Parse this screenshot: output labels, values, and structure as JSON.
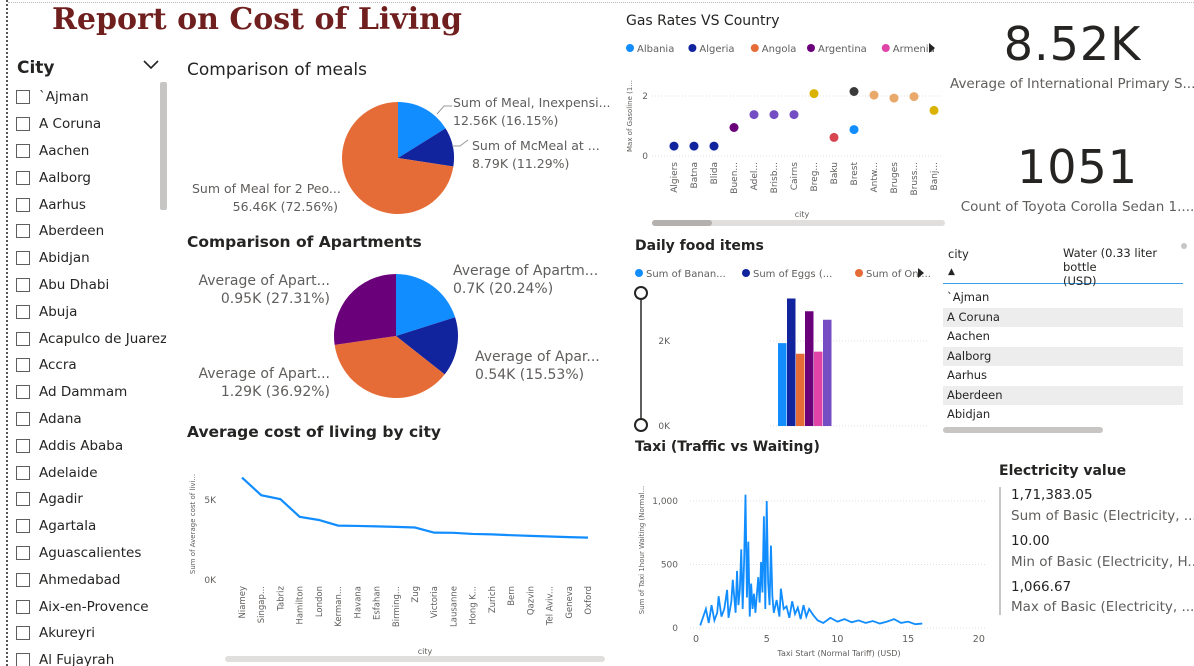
{
  "report_title": "Report on Cost of Living",
  "slicer": {
    "title": "City",
    "items": [
      "`Ajman",
      "A Coruna",
      "Aachen",
      "Aalborg",
      "Aarhus",
      "Aberdeen",
      "Abidjan",
      "Abu Dhabi",
      "Abuja",
      "Acapulco de Juarez",
      "Accra",
      "Ad Dammam",
      "Adana",
      "Addis Ababa",
      "Adelaide",
      "Agadir",
      "Agartala",
      "Aguascalientes",
      "Ahmedabad",
      "Aix-en-Provence",
      "Akureyri",
      "Al Fujayrah"
    ]
  },
  "cards": [
    {
      "value": "8.52K",
      "label": "Average of International Primary S..."
    },
    {
      "value": "1051",
      "label": "Count of Toyota Corolla Sedan 1...."
    }
  ],
  "table": {
    "col1": "city",
    "col2_line1": "Water (0.33 liter bottle",
    "col2_line2": "(USD)",
    "sort_mark": "▲",
    "rows": [
      "`Ajman",
      "A Coruna",
      "Aachen",
      "Aalborg",
      "Aarhus",
      "Aberdeen",
      "Abidjan"
    ]
  },
  "electricity": {
    "title": "Electricity value",
    "items": [
      {
        "value": "1,71,383.05",
        "label": "Sum of Basic (Electricity, ..."
      },
      {
        "value": "10.00",
        "label": "Min of Basic (Electricity, H..."
      },
      {
        "value": "1,066.67",
        "label": "Max of Basic (Electricity, ..."
      }
    ]
  },
  "chart_data": [
    {
      "id": "meals",
      "type": "pie",
      "title": "Comparison of meals",
      "slices": [
        {
          "name": "Sum of Meal, Inexpensi...",
          "label": "12.56K (16.15%)",
          "value": 12560,
          "color": "#118dff"
        },
        {
          "name": "Sum of McMeal at ...",
          "label": "8.79K (11.29%)",
          "value": 8790,
          "color": "#12239e"
        },
        {
          "name": "Sum of Meal for 2 Peo...",
          "label": "56.46K (72.56%)",
          "value": 56460,
          "color": "#e66c37"
        }
      ]
    },
    {
      "id": "apartments",
      "type": "pie",
      "title": "Comparison of Apartments",
      "slices": [
        {
          "name": "Average of Apartm...",
          "label": "0.7K (20.24%)",
          "value": 700,
          "color": "#118dff"
        },
        {
          "name": "Average of Apar...",
          "label": "0.54K (15.53%)",
          "value": 540,
          "color": "#12239e"
        },
        {
          "name": "Average of Apart...",
          "label": "1.29K (36.92%)",
          "value": 1290,
          "color": "#e66c37"
        },
        {
          "name": "Average of Apart...",
          "label": "0.95K (27.31%)",
          "value": 950,
          "color": "#6b007b"
        }
      ]
    },
    {
      "id": "avg_cost",
      "type": "line",
      "title": "Average cost of living by city",
      "xlabel": "city",
      "ylabel": "Sum of Average cost of livi...",
      "ylim": [
        0,
        7000
      ],
      "yticks": [
        {
          "v": 0,
          "t": "0K"
        },
        {
          "v": 5000,
          "t": "5K"
        }
      ],
      "color": "#118dff",
      "categories": [
        "Niamey",
        "Singap...",
        "Tabriz",
        "Hamilton",
        "London",
        "Kerman...",
        "Havana",
        "Esfahan",
        "Birming...",
        "Zug",
        "Victoria",
        "Lausanne",
        "Hong K...",
        "Zurich",
        "Bern",
        "Qazvin",
        "Tel Aviv...",
        "Geneva",
        "Oxford"
      ],
      "values": [
        6400,
        5300,
        5050,
        3950,
        3750,
        3400,
        3380,
        3350,
        3320,
        3280,
        2960,
        2950,
        2880,
        2850,
        2800,
        2760,
        2720,
        2680,
        2650
      ]
    },
    {
      "id": "gas",
      "type": "scatter",
      "title": "Gas Rates VS Country",
      "xlabel": "city",
      "ylabel": "Max of Gasoline (1...",
      "ylim": [
        0,
        2.6
      ],
      "yticks": [
        {
          "v": 0,
          "t": "0"
        },
        {
          "v": 2,
          "t": "2"
        }
      ],
      "legend": [
        {
          "name": "Albania",
          "color": "#118dff"
        },
        {
          "name": "Algeria",
          "color": "#12239e"
        },
        {
          "name": "Angola",
          "color": "#e66c37"
        },
        {
          "name": "Argentina",
          "color": "#6b007b"
        },
        {
          "name": "Armenia",
          "color": "#e044a7"
        }
      ],
      "categories": [
        "Algiers",
        "Batna",
        "Blida",
        "Buen...",
        "Adel...",
        "Brisb...",
        "Cairns",
        "Breg...",
        "Baku",
        "Brest",
        "Antw...",
        "Bruges",
        "Bruss...",
        "Banj..."
      ],
      "values": [
        0.33,
        0.33,
        0.33,
        0.95,
        1.38,
        1.38,
        1.38,
        2.08,
        0.62,
        2.15,
        2.03,
        1.93,
        1.98,
        1.52
      ],
      "extra": [
        {
          "index": 9,
          "value": 0.88,
          "color": "#118dff"
        }
      ],
      "colors": [
        "#12239e",
        "#12239e",
        "#12239e",
        "#6b007b",
        "#744ec2",
        "#744ec2",
        "#744ec2",
        "#d9b300",
        "#d64550",
        "#3a3a3a",
        "#e8a96a",
        "#e8a96a",
        "#e8a96a",
        "#d9b300"
      ]
    },
    {
      "id": "daily_food",
      "type": "bar",
      "title": "Daily food items",
      "legend": [
        {
          "name": "Sum of Banan...",
          "color": "#118dff"
        },
        {
          "name": "Sum of Eggs (...",
          "color": "#12239e"
        },
        {
          "name": "Sum of Oni...",
          "color": "#e66c37"
        }
      ],
      "ylim": [
        0,
        3200
      ],
      "yticks": [
        {
          "v": 0,
          "t": "0K"
        },
        {
          "v": 2000,
          "t": "2K"
        }
      ],
      "values": [
        1950,
        3000,
        1700,
        2700,
        1750,
        2500
      ],
      "colors": [
        "#118dff",
        "#12239e",
        "#e66c37",
        "#6b007b",
        "#e044a7",
        "#744ec2"
      ]
    },
    {
      "id": "taxi",
      "type": "line",
      "title": "Taxi (Traffic vs Waiting)",
      "xlabel": "Taxi Start (Normal Tariff) (USD)",
      "ylabel": "Sum of Taxi 1hour Waiting (Normal...",
      "xlim": [
        0,
        21
      ],
      "ylim": [
        0,
        1150
      ],
      "xticks": [
        {
          "v": 0,
          "t": "0"
        },
        {
          "v": 5,
          "t": "5"
        },
        {
          "v": 10,
          "t": "10"
        },
        {
          "v": 15,
          "t": "15"
        },
        {
          "v": 20,
          "t": "20"
        }
      ],
      "yticks": [
        {
          "v": 0,
          "t": "0"
        },
        {
          "v": 500,
          "t": "500"
        },
        {
          "v": 1000,
          "t": "1,000"
        }
      ],
      "color": "#118dff",
      "x": [
        0.3,
        0.7,
        0.9,
        1.1,
        1.3,
        1.5,
        1.6,
        1.8,
        2.0,
        2.2,
        2.3,
        2.5,
        2.6,
        2.8,
        2.9,
        3.0,
        3.1,
        3.2,
        3.3,
        3.4,
        3.5,
        3.6,
        3.7,
        3.8,
        3.9,
        4.0,
        4.1,
        4.2,
        4.4,
        4.5,
        4.6,
        4.7,
        4.8,
        4.9,
        5.0,
        5.1,
        5.2,
        5.3,
        5.4,
        5.5,
        5.7,
        5.9,
        6.0,
        6.2,
        6.4,
        6.6,
        6.8,
        7.0,
        7.2,
        7.4,
        7.6,
        7.8,
        8.0,
        8.3,
        8.6,
        9.0,
        9.5,
        10.0,
        10.5,
        11.0,
        11.5,
        12.0,
        12.5,
        13.0,
        13.5,
        14.0,
        14.5,
        15.0,
        15.5,
        16.0
      ],
      "values": [
        20,
        150,
        40,
        180,
        60,
        120,
        250,
        90,
        150,
        300,
        80,
        210,
        380,
        120,
        450,
        180,
        300,
        620,
        150,
        520,
        1050,
        240,
        680,
        90,
        350,
        150,
        270,
        120,
        400,
        200,
        520,
        280,
        880,
        150,
        1000,
        360,
        180,
        650,
        250,
        120,
        220,
        90,
        310,
        150,
        170,
        80,
        210,
        110,
        160,
        70,
        180,
        90,
        150,
        100,
        60,
        40,
        80,
        50,
        70,
        45,
        60,
        40,
        55,
        35,
        50,
        70,
        40,
        50,
        30,
        35
      ]
    }
  ]
}
